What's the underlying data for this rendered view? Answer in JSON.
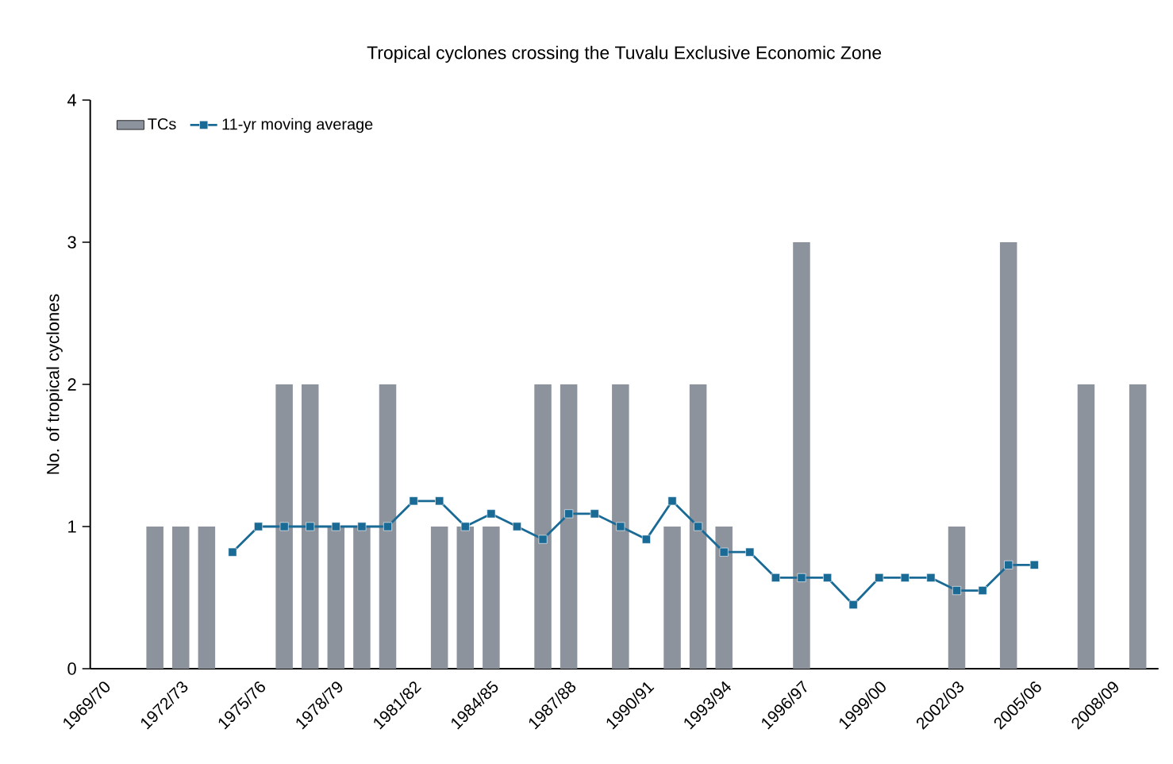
{
  "chart_data": {
    "type": "bar",
    "title": "Tropical cyclones crossing the Tuvalu Exclusive Economic Zone",
    "ylabel": "No. of tropical cyclones",
    "categories": [
      "1969/70",
      null,
      null,
      "1972/73",
      null,
      null,
      "1975/76",
      null,
      null,
      "1978/79",
      null,
      null,
      "1981/82",
      null,
      null,
      "1984/85",
      null,
      null,
      "1987/88",
      null,
      null,
      "1990/91",
      null,
      null,
      "1993/94",
      null,
      null,
      "1996/97",
      null,
      null,
      "1999/00",
      null,
      null,
      "2002/03",
      null,
      null,
      "2005/06",
      null,
      null,
      "2008/09",
      null
    ],
    "series": [
      {
        "name": "TCs",
        "color": "#8c939c",
        "values": [
          0,
          0,
          1,
          1,
          1,
          0,
          0,
          2,
          2,
          1,
          1,
          2,
          0,
          1,
          1,
          1,
          0,
          2,
          2,
          0,
          2,
          0,
          1,
          2,
          1,
          0,
          0,
          3,
          0,
          0,
          0,
          0,
          0,
          1,
          0,
          3,
          0,
          0,
          2,
          0,
          2
        ]
      },
      {
        "name": "11-yr moving average",
        "type": "line",
        "color": "#1a6a96",
        "marker": "square",
        "values": [
          null,
          null,
          null,
          null,
          null,
          0.82,
          1,
          1,
          1,
          1,
          1,
          1,
          1.18,
          1.18,
          1,
          1.09,
          1,
          0.91,
          1.09,
          1.09,
          1,
          0.91,
          1.18,
          1,
          0.82,
          0.82,
          0.64,
          0.64,
          0.64,
          0.45,
          0.64,
          0.64,
          0.64,
          0.55,
          0.55,
          0.73,
          0.73,
          null,
          null,
          null,
          null
        ]
      }
    ],
    "ylim": [
      0,
      4
    ],
    "yticks": [
      0,
      1,
      2,
      3,
      4
    ],
    "grid": false,
    "legend": "top left"
  }
}
